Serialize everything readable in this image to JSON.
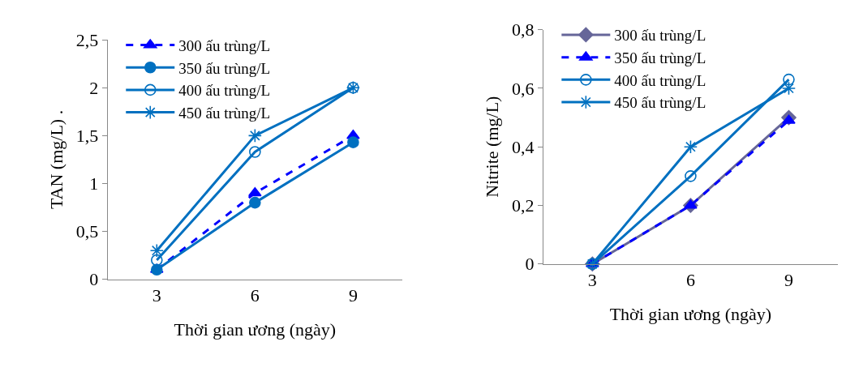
{
  "chart_data": [
    {
      "type": "line",
      "xlabel": "Thời gian ương (ngày)",
      "ylabel": "TAN (mg/L) .",
      "categories": [
        "3",
        "6",
        "9"
      ],
      "ylim": [
        0,
        2.5
      ],
      "yticks": [
        {
          "value": 0,
          "label": "0"
        },
        {
          "value": 0.5,
          "label": "0,5"
        },
        {
          "value": 1,
          "label": "1"
        },
        {
          "value": 1.5,
          "label": "1,5"
        },
        {
          "value": 2,
          "label": "2"
        },
        {
          "value": 2.5,
          "label": "2,5"
        }
      ],
      "legend": "top left",
      "series": [
        {
          "name": "300 ấu trùng/L",
          "color": "#0000ff",
          "marker": "triangle",
          "line_style": "dashed",
          "values": [
            0.1,
            0.9,
            1.5
          ]
        },
        {
          "name": "350 ấu trùng/L",
          "color": "#0070c0",
          "marker": "circle",
          "line_style": "solid",
          "values": [
            0.1,
            0.8,
            1.43
          ]
        },
        {
          "name": "400 ấu trùng/L",
          "color": "#0070c0",
          "marker": "circle-open",
          "line_style": "solid",
          "values": [
            0.2,
            1.33,
            2.0
          ]
        },
        {
          "name": "450 ấu trùng/L",
          "color": "#0070c0",
          "marker": "cross",
          "line_style": "solid",
          "values": [
            0.3,
            1.5,
            2.0
          ]
        }
      ]
    },
    {
      "type": "line",
      "xlabel": "Thời gian ương (ngày)",
      "ylabel": "Nitrite (mg/L)",
      "categories": [
        "3",
        "6",
        "9"
      ],
      "ylim": [
        0,
        0.8
      ],
      "yticks": [
        {
          "value": 0,
          "label": "0"
        },
        {
          "value": 0.2,
          "label": "0,2"
        },
        {
          "value": 0.4,
          "label": "0,4"
        },
        {
          "value": 0.6,
          "label": "0,6"
        },
        {
          "value": 0.8,
          "label": "0,8"
        }
      ],
      "legend": "top left",
      "series": [
        {
          "name": "300 ấu trùng/L",
          "color": "#666699",
          "marker": "diamond",
          "line_style": "solid",
          "values": [
            0,
            0.2,
            0.5
          ]
        },
        {
          "name": "350 ấu trùng/L",
          "color": "#0000ff",
          "marker": "triangle",
          "line_style": "dashed",
          "values": [
            0,
            0.2,
            0.49
          ]
        },
        {
          "name": "400 ấu trùng/L",
          "color": "#0070c0",
          "marker": "circle-open",
          "line_style": "solid",
          "values": [
            0,
            0.3,
            0.63
          ]
        },
        {
          "name": "450 ấu trùng/L",
          "color": "#0070c0",
          "marker": "cross",
          "line_style": "solid",
          "values": [
            0,
            0.4,
            0.6
          ]
        }
      ]
    }
  ]
}
